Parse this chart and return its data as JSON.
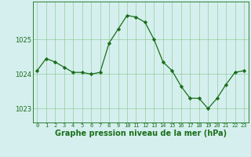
{
  "x": [
    0,
    1,
    2,
    3,
    4,
    5,
    6,
    7,
    8,
    9,
    10,
    11,
    12,
    13,
    14,
    15,
    16,
    17,
    18,
    19,
    20,
    21,
    22,
    23
  ],
  "y": [
    1024.1,
    1024.45,
    1024.35,
    1024.2,
    1024.05,
    1024.05,
    1024.0,
    1024.05,
    1024.9,
    1025.3,
    1025.7,
    1025.65,
    1025.5,
    1025.0,
    1024.35,
    1024.1,
    1023.65,
    1023.3,
    1023.3,
    1023.0,
    1023.3,
    1023.7,
    1024.05,
    1024.1
  ],
  "line_color": "#1a6e1a",
  "marker": "D",
  "marker_size": 2.2,
  "bg_color": "#d5efef",
  "grid_color": "#7bbf7b",
  "xlabel": "Graphe pression niveau de la mer (hPa)",
  "xlabel_fontsize": 7.0,
  "tick_labels": [
    "0",
    "1",
    "2",
    "3",
    "4",
    "5",
    "6",
    "7",
    "8",
    "9",
    "10",
    "11",
    "12",
    "13",
    "14",
    "15",
    "16",
    "17",
    "18",
    "19",
    "20",
    "21",
    "22",
    "23"
  ],
  "yticks": [
    1023,
    1024,
    1025
  ],
  "ylim": [
    1022.6,
    1026.1
  ],
  "xlim": [
    -0.5,
    23.5
  ]
}
